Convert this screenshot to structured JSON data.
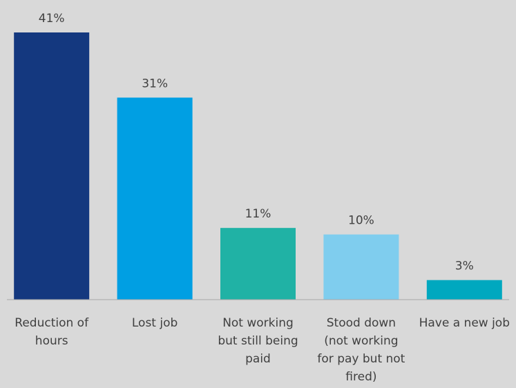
{
  "chart_data": {
    "type": "bar",
    "title": "",
    "xlabel": "",
    "ylabel": "",
    "ylim": [
      0,
      41
    ],
    "grid": false,
    "categories": [
      "Reduction of hours",
      "Lost job",
      "Not working but still being paid",
      "Stood down (not working for pay but not fired)",
      "Have a new job"
    ],
    "category_lines": [
      [
        "Reduction of",
        "hours"
      ],
      [
        "Lost job"
      ],
      [
        "Not working",
        "but still being",
        "paid"
      ],
      [
        "Stood down",
        "(not working",
        "for pay but not",
        "fired)"
      ],
      [
        "Have a new job"
      ]
    ],
    "values": [
      41,
      31,
      11,
      10,
      3
    ],
    "value_labels": [
      "41%",
      "31%",
      "11%",
      "10%",
      "3%"
    ],
    "colors": [
      "#14387f",
      "#009fe3",
      "#20b2a5",
      "#7fcdee",
      "#00a8bf"
    ]
  }
}
